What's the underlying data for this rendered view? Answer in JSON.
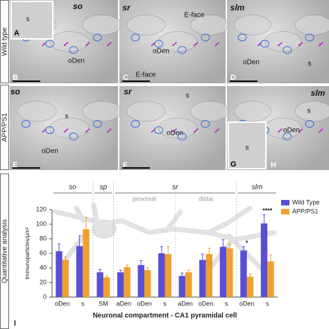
{
  "row_labels": [
    "Wild type",
    "APP/PS1",
    "Quantitative analysis"
  ],
  "micrographs": [
    {
      "region": "so",
      "letters": [
        "A",
        "B"
      ],
      "texts": [
        "s",
        "oDen"
      ]
    },
    {
      "region": "sr",
      "letters": [
        "C"
      ],
      "texts": [
        "E-face",
        "oDen",
        "E-face"
      ]
    },
    {
      "region": "slm",
      "letters": [
        "D"
      ],
      "texts": [
        "oDen",
        "s"
      ]
    },
    {
      "region": "so",
      "letters": [
        "E"
      ],
      "texts": [
        "s",
        "oDen"
      ]
    },
    {
      "region": "sr",
      "letters": [
        "F"
      ],
      "texts": [
        "s",
        "oDen"
      ]
    },
    {
      "region": "slm",
      "letters": [
        "G",
        "H"
      ],
      "texts": [
        "s",
        "oDen",
        "s"
      ]
    }
  ],
  "chart_data": {
    "type": "bar",
    "panel_letter": "I",
    "ylabel": "Immunoparticles/μm²",
    "xlabel": "Neuronal compartment - CA1 pyramidal cell",
    "groups": [
      "so",
      "sp",
      "sr",
      "slm"
    ],
    "subgroups": [
      "proximal",
      "distal"
    ],
    "categories": [
      "oDen",
      "s",
      "SM",
      "aDen",
      "oDen",
      "s",
      "aDen",
      "oDen",
      "s",
      "oDen",
      "s"
    ],
    "series": [
      {
        "name": "Wild Type",
        "color": "#5a4fd4",
        "values": [
          63,
          70,
          34,
          34,
          44,
          60,
          29,
          51,
          69,
          64,
          101
        ],
        "errors": [
          10,
          14,
          4,
          3,
          6,
          9,
          4,
          8,
          10,
          5,
          12
        ]
      },
      {
        "name": "APP/PS1",
        "color": "#f0a030",
        "values": [
          51,
          93,
          27,
          41,
          37,
          59,
          34,
          59,
          67,
          28,
          49
        ],
        "errors": [
          4,
          16,
          2,
          3,
          4,
          10,
          3,
          8,
          6,
          4,
          9
        ]
      }
    ],
    "annotations": [
      "*",
      "****"
    ],
    "ylim": [
      0,
      120
    ],
    "yticks": [
      0,
      20,
      40,
      60,
      80,
      100,
      120
    ],
    "legend": "upper right"
  }
}
